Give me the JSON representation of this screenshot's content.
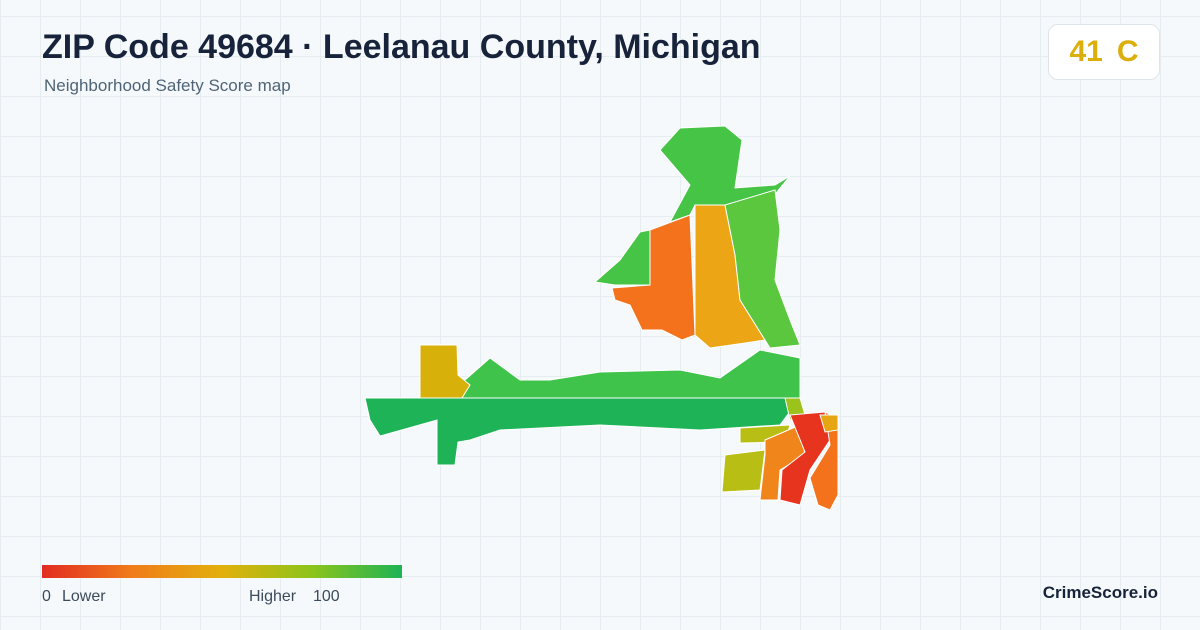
{
  "header": {
    "title": "ZIP Code 49684 · Leelanau County, Michigan",
    "subtitle": "Neighborhood Safety Score map"
  },
  "score": {
    "value": 41,
    "grade": "C"
  },
  "legend": {
    "min": 0,
    "min_label": "Lower",
    "max_label": "Higher",
    "max": 100
  },
  "brand": "CrimeScore.io"
}
